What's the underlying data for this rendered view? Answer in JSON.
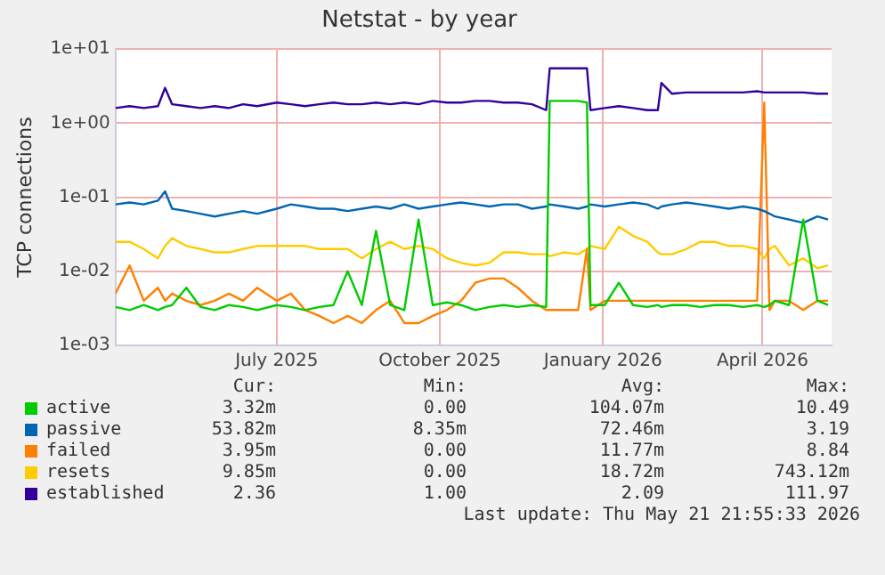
{
  "chart_data": {
    "type": "line",
    "title": "Netstat - by year",
    "ylabel": "TCP connections",
    "x": [
      "2025-04-01",
      "2025-04-09",
      "2025-04-17",
      "2025-04-25",
      "2025-04-29",
      "2025-05-03",
      "2025-05-11",
      "2025-05-19",
      "2025-05-27",
      "2025-06-04",
      "2025-06-12",
      "2025-06-20",
      "2025-07-01",
      "2025-07-09",
      "2025-07-17",
      "2025-07-25",
      "2025-08-02",
      "2025-08-10",
      "2025-08-18",
      "2025-08-26",
      "2025-09-03",
      "2025-09-11",
      "2025-09-19",
      "2025-09-27",
      "2025-10-05",
      "2025-10-13",
      "2025-10-21",
      "2025-10-29",
      "2025-11-06",
      "2025-11-14",
      "2025-11-22",
      "2025-11-30",
      "2025-12-02",
      "2025-12-10",
      "2025-12-18",
      "2025-12-23",
      "2025-12-25",
      "2026-01-02",
      "2026-01-10",
      "2026-01-18",
      "2026-01-26",
      "2026-02-01",
      "2026-02-03",
      "2026-02-09",
      "2026-02-17",
      "2026-02-25",
      "2026-03-05",
      "2026-03-13",
      "2026-03-21",
      "2026-03-29",
      "2026-04-02",
      "2026-04-05",
      "2026-04-08",
      "2026-04-16",
      "2026-04-24",
      "2026-05-02",
      "2026-05-08"
    ],
    "series": [
      {
        "name": "active",
        "color": "#00cc00",
        "values": [
          0.0033,
          0.003,
          0.0035,
          0.003,
          0.0033,
          0.0035,
          0.006,
          0.0033,
          0.003,
          0.0035,
          0.0033,
          0.003,
          0.0035,
          0.0033,
          0.003,
          0.0033,
          0.0035,
          0.01,
          0.0035,
          0.035,
          0.0035,
          0.003,
          0.05,
          0.0035,
          0.0038,
          0.0035,
          0.003,
          0.0033,
          0.0035,
          0.0033,
          0.0035,
          0.0033,
          2.0,
          2.0,
          2.0,
          1.9,
          0.0035,
          0.0035,
          0.007,
          0.0035,
          0.0033,
          0.0035,
          0.0033,
          0.0035,
          0.0035,
          0.0033,
          0.0035,
          0.0035,
          0.0033,
          0.0035,
          0.0033,
          0.0035,
          0.004,
          0.0035,
          0.05,
          0.004,
          0.0035
        ]
      },
      {
        "name": "passive",
        "color": "#0066b3",
        "values": [
          0.08,
          0.085,
          0.08,
          0.09,
          0.12,
          0.07,
          0.065,
          0.06,
          0.055,
          0.06,
          0.065,
          0.06,
          0.07,
          0.08,
          0.075,
          0.07,
          0.07,
          0.065,
          0.07,
          0.075,
          0.07,
          0.08,
          0.07,
          0.075,
          0.08,
          0.085,
          0.08,
          0.075,
          0.08,
          0.08,
          0.07,
          0.075,
          0.08,
          0.075,
          0.07,
          0.075,
          0.08,
          0.075,
          0.08,
          0.085,
          0.08,
          0.07,
          0.075,
          0.08,
          0.085,
          0.08,
          0.075,
          0.07,
          0.075,
          0.07,
          0.065,
          0.06,
          0.055,
          0.05,
          0.045,
          0.055,
          0.05
        ]
      },
      {
        "name": "failed",
        "color": "#ff8000",
        "values": [
          0.005,
          0.012,
          0.004,
          0.006,
          0.004,
          0.005,
          0.004,
          0.0035,
          0.004,
          0.005,
          0.004,
          0.006,
          0.004,
          0.005,
          0.003,
          0.0025,
          0.002,
          0.0025,
          0.002,
          0.003,
          0.004,
          0.002,
          0.002,
          0.0025,
          0.003,
          0.004,
          0.007,
          0.008,
          0.008,
          0.006,
          0.004,
          0.003,
          0.003,
          0.003,
          0.003,
          0.02,
          0.003,
          0.004,
          0.004,
          0.004,
          0.004,
          0.004,
          0.004,
          0.004,
          0.004,
          0.004,
          0.004,
          0.004,
          0.004,
          0.004,
          1.9,
          0.003,
          0.004,
          0.004,
          0.003,
          0.004,
          0.004
        ]
      },
      {
        "name": "resets",
        "color": "#ffcc00",
        "values": [
          0.025,
          0.025,
          0.02,
          0.015,
          0.022,
          0.028,
          0.022,
          0.02,
          0.018,
          0.018,
          0.02,
          0.022,
          0.022,
          0.022,
          0.022,
          0.02,
          0.02,
          0.02,
          0.015,
          0.02,
          0.025,
          0.02,
          0.022,
          0.02,
          0.015,
          0.013,
          0.012,
          0.013,
          0.018,
          0.018,
          0.017,
          0.017,
          0.016,
          0.018,
          0.017,
          0.02,
          0.022,
          0.02,
          0.04,
          0.03,
          0.025,
          0.018,
          0.017,
          0.017,
          0.02,
          0.025,
          0.025,
          0.022,
          0.022,
          0.02,
          0.015,
          0.02,
          0.022,
          0.012,
          0.015,
          0.011,
          0.012
        ]
      },
      {
        "name": "established",
        "color": "#330099",
        "values": [
          1.6,
          1.7,
          1.6,
          1.7,
          3.0,
          1.8,
          1.7,
          1.6,
          1.7,
          1.6,
          1.8,
          1.7,
          1.9,
          1.8,
          1.7,
          1.8,
          1.9,
          1.8,
          1.8,
          1.9,
          1.8,
          1.9,
          1.8,
          2.0,
          1.9,
          1.9,
          2.0,
          2.0,
          1.9,
          1.9,
          1.8,
          1.5,
          5.5,
          5.5,
          5.5,
          5.5,
          1.5,
          1.6,
          1.7,
          1.6,
          1.5,
          1.5,
          3.5,
          2.5,
          2.6,
          2.6,
          2.6,
          2.6,
          2.6,
          2.7,
          2.6,
          2.6,
          2.6,
          2.6,
          2.6,
          2.5,
          2.5
        ]
      }
    ],
    "xlim": [
      "2025-04-01",
      "2026-05-10"
    ],
    "xticks": [
      {
        "value": "2025-07-01",
        "label": "July 2025"
      },
      {
        "value": "2025-10-01",
        "label": "October 2025"
      },
      {
        "value": "2026-01-01",
        "label": "January 2026"
      },
      {
        "value": "2026-04-01",
        "label": "April 2026"
      }
    ],
    "log": true,
    "ylim": [
      0.001,
      10
    ],
    "yticks": [
      {
        "value": 0.001,
        "label": "1e-03"
      },
      {
        "value": 0.01,
        "label": "1e-02"
      },
      {
        "value": 0.1,
        "label": "1e-01"
      },
      {
        "value": 1,
        "label": "1e+00"
      },
      {
        "value": 10,
        "label": "1e+01"
      }
    ],
    "grid": true,
    "legend": "bottom",
    "marker": "none",
    "line_style": "solid",
    "annotations": [
      "Cur:",
      "Min:",
      "Avg:",
      "Max:",
      "3.32m",
      "0.00",
      "104.07m",
      "10.49",
      "53.82m",
      "8.35m",
      "72.46m",
      "3.19",
      "3.95m",
      "0.00",
      "11.77m",
      "8.84",
      "9.85m",
      "0.00",
      "18.72m",
      "743.12m",
      "2.36",
      "1.00",
      "2.09",
      "111.97",
      "Last update: Thu May 21 21:55:33 2026"
    ]
  }
}
